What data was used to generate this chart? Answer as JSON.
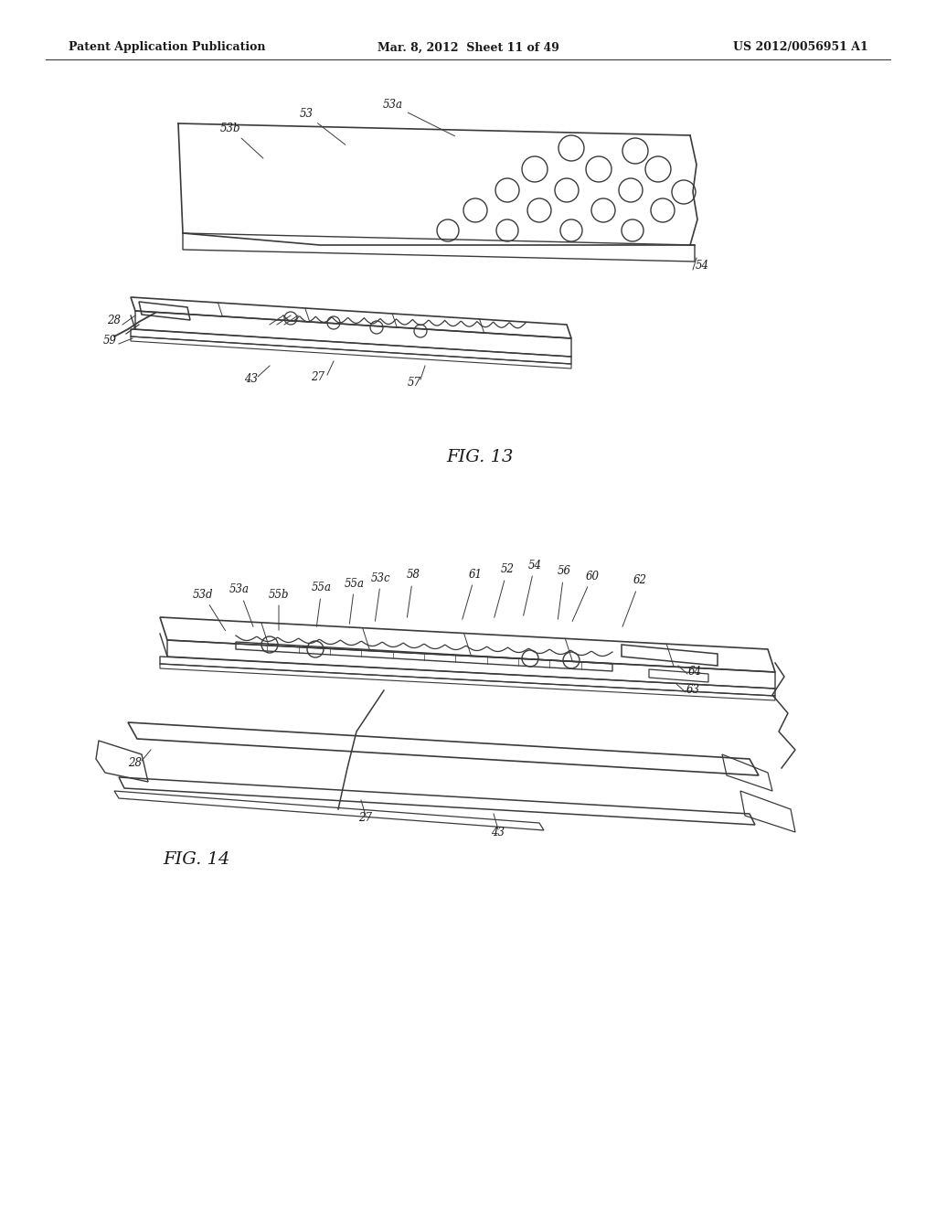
{
  "bg_color": "#ffffff",
  "line_color": "#3a3a3a",
  "text_color": "#1a1a1a",
  "header_left": "Patent Application Publication",
  "header_mid": "Mar. 8, 2012  Sheet 11 of 49",
  "header_right": "US 2012/0056951 A1",
  "fig13_label": "FIG. 13",
  "fig14_label": "FIG. 14"
}
